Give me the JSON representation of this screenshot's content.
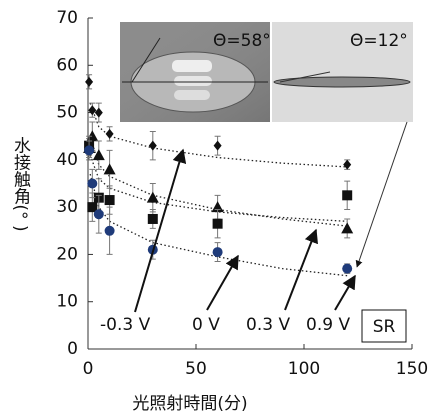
{
  "chart_data": {
    "type": "scatter",
    "xlabel": "光照射時間(分)",
    "ylabel": "水接触角(°  )",
    "xlim": [
      0,
      150
    ],
    "xticks": [
      0,
      50,
      100,
      150
    ],
    "ylim": [
      0,
      70
    ],
    "yticks": [
      0,
      10,
      20,
      30,
      40,
      50,
      60,
      70
    ],
    "series": [
      {
        "marker": "diamond",
        "color": "#111111",
        "x": [
          0.5,
          2,
          5,
          10,
          30,
          60,
          120
        ],
        "values": [
          56.5,
          50.5,
          50,
          45.5,
          43,
          43,
          39
        ],
        "errors": [
          1.5,
          1.5,
          2,
          1.5,
          3,
          2,
          1
        ]
      },
      {
        "marker": "triangle",
        "color": "#111111",
        "x": [
          0.5,
          2,
          5,
          10,
          30,
          60,
          120
        ],
        "values": [
          42.5,
          45,
          41,
          38,
          32,
          30,
          25.5
        ],
        "errors": [
          2,
          3,
          3,
          4,
          3,
          2.5,
          2
        ]
      },
      {
        "marker": "square",
        "color": "#111111",
        "x": [
          0.5,
          2,
          5,
          10,
          30,
          60,
          120
        ],
        "values": [
          43,
          30,
          32,
          31.5,
          27.5,
          26.5,
          32.5
        ],
        "errors": [
          2,
          3,
          4,
          3,
          2,
          3,
          3
        ]
      },
      {
        "marker": "circle",
        "color": "#1f3b7a",
        "x": [
          0.5,
          2,
          5,
          10,
          30,
          60,
          120
        ],
        "values": [
          42,
          35,
          28.5,
          25,
          21,
          20.5,
          17
        ],
        "errors": [
          2,
          3,
          4,
          5,
          2,
          2,
          1
        ]
      }
    ],
    "fits": [
      {
        "x": [
          1,
          5,
          10,
          30,
          60,
          90,
          120
        ],
        "values": [
          52,
          47,
          45,
          42.5,
          40.5,
          39.3,
          38.5
        ]
      },
      {
        "x": [
          1,
          5,
          10,
          30,
          60,
          90,
          120
        ],
        "values": [
          45,
          39,
          36.5,
          32.5,
          29.5,
          27.5,
          26
        ]
      },
      {
        "x": [
          1,
          5,
          10,
          30,
          60,
          90,
          120
        ],
        "values": [
          41,
          36,
          34,
          31,
          29,
          27.8,
          27
        ]
      },
      {
        "x": [
          1,
          5,
          10,
          30,
          60,
          90,
          120
        ],
        "values": [
          37,
          30,
          27,
          22.5,
          19.5,
          17,
          15.5
        ]
      }
    ],
    "annotations": [
      "-0.3 V",
      "0 V",
      "0.3 V",
      "0.9 V",
      "SR",
      "Θ=58°",
      "Θ=12°"
    ]
  }
}
